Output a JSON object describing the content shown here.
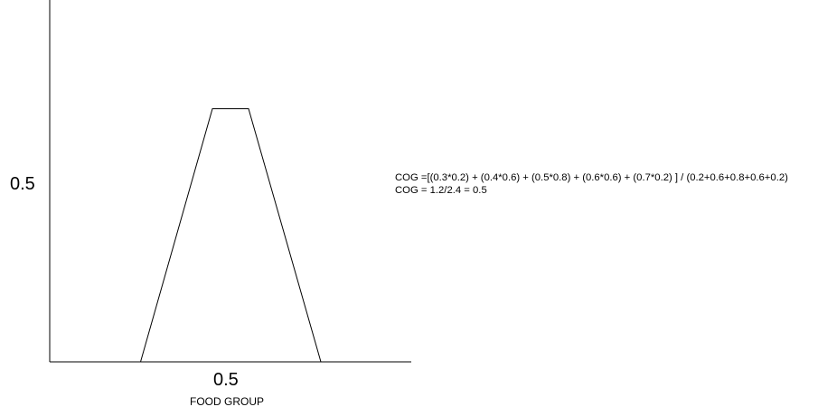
{
  "diagram": {
    "y_tick_label": "0.5",
    "x_tick_label": "0.5",
    "x_axis_title": "FOOD GROUP",
    "shape": "trapezoidal membership function",
    "stroke_color": "#000000"
  },
  "formula": {
    "line1": "COG =[(0.3*0.2) + (0.4*0.6) + (0.5*0.8) + (0.6*0.6) + (0.7*0.2) ] / (0.2+0.6+0.8+0.6+0.2)",
    "line2": "COG = 1.2/2.4 = 0.5"
  }
}
